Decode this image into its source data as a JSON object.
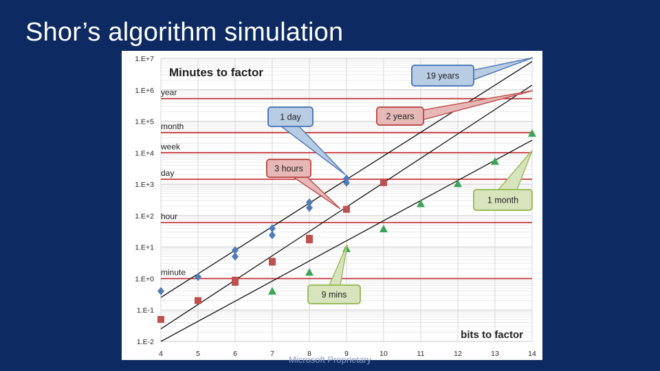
{
  "slide": {
    "title": "Shor’s algorithm simulation",
    "footer": "Microsoft Proprietary"
  },
  "chart_data": {
    "type": "scatter",
    "title": "Minutes to factor",
    "xlabel": "bits to factor",
    "ylabel": "",
    "x_ticks": [
      "4",
      "5",
      "6",
      "7",
      "8",
      "9",
      "10",
      "11",
      "12",
      "13",
      "14"
    ],
    "y_ticks": [
      "1.E-2",
      "1.E-1",
      "1.E+0",
      "1.E+1",
      "1.E+2",
      "1.E+3",
      "1.E+4",
      "1.E+5",
      "1.E+6",
      "1.E+7"
    ],
    "xlim": [
      4,
      14
    ],
    "ylim_log10": [
      -2,
      7
    ],
    "y_scale": "log",
    "grid": true,
    "reference_lines": [
      {
        "label": "year",
        "log10_minutes": 5.72
      },
      {
        "label": "month",
        "log10_minutes": 4.64
      },
      {
        "label": "week",
        "log10_minutes": 4.0
      },
      {
        "label": "day",
        "log10_minutes": 3.16
      },
      {
        "label": "hour",
        "log10_minutes": 1.78
      },
      {
        "label": "minute",
        "log10_minutes": 0.0
      }
    ],
    "series": [
      {
        "color": "#4f7bb8",
        "marker": "diamond",
        "points": [
          [
            4,
            -0.4
          ],
          [
            5,
            0.05
          ],
          [
            6,
            0.9
          ],
          [
            6,
            0.7
          ],
          [
            7,
            1.6
          ],
          [
            7,
            1.38
          ],
          [
            8,
            2.42
          ],
          [
            8,
            2.25
          ],
          [
            9,
            3.18
          ],
          [
            9,
            3.05
          ]
        ]
      },
      {
        "color": "#c0504d",
        "marker": "square",
        "points": [
          [
            4,
            -1.3
          ],
          [
            5,
            -0.7
          ],
          [
            6,
            -0.05
          ],
          [
            6,
            -0.12
          ],
          [
            7,
            0.52
          ],
          [
            7,
            0.55
          ],
          [
            8,
            1.23
          ],
          [
            8,
            1.28
          ],
          [
            9,
            2.2
          ],
          [
            10,
            3.05
          ]
        ]
      },
      {
        "color": "#3aa655",
        "marker": "triangle",
        "points": [
          [
            7,
            -0.4
          ],
          [
            8,
            0.2
          ],
          [
            9,
            0.95
          ],
          [
            10,
            1.58
          ],
          [
            11,
            2.38
          ],
          [
            12,
            3.02
          ],
          [
            13,
            3.73
          ],
          [
            14,
            4.62
          ]
        ]
      }
    ],
    "trend_lines": [
      {
        "from": [
          4,
          -0.6
        ],
        "to": [
          14,
          6.9
        ]
      },
      {
        "from": [
          4,
          -1.6
        ],
        "to": [
          14,
          6.15
        ]
      },
      {
        "from": [
          4,
          -2.0
        ],
        "to": [
          14,
          4.4
        ]
      }
    ],
    "callouts": [
      {
        "text": "19 years",
        "color": "#b8cce4",
        "border": "#4f7bb8"
      },
      {
        "text": "2 years",
        "color": "#e6b9b8",
        "border": "#c0504d"
      },
      {
        "text": "1 day",
        "color": "#b8cce4",
        "border": "#4f7bb8"
      },
      {
        "text": "3 hours",
        "color": "#e6b9b8",
        "border": "#c0504d"
      },
      {
        "text": "1 month",
        "color": "#d7e4bd",
        "border": "#9bbb59"
      },
      {
        "text": "9 mins",
        "color": "#d7e4bd",
        "border": "#9bbb59"
      }
    ]
  }
}
